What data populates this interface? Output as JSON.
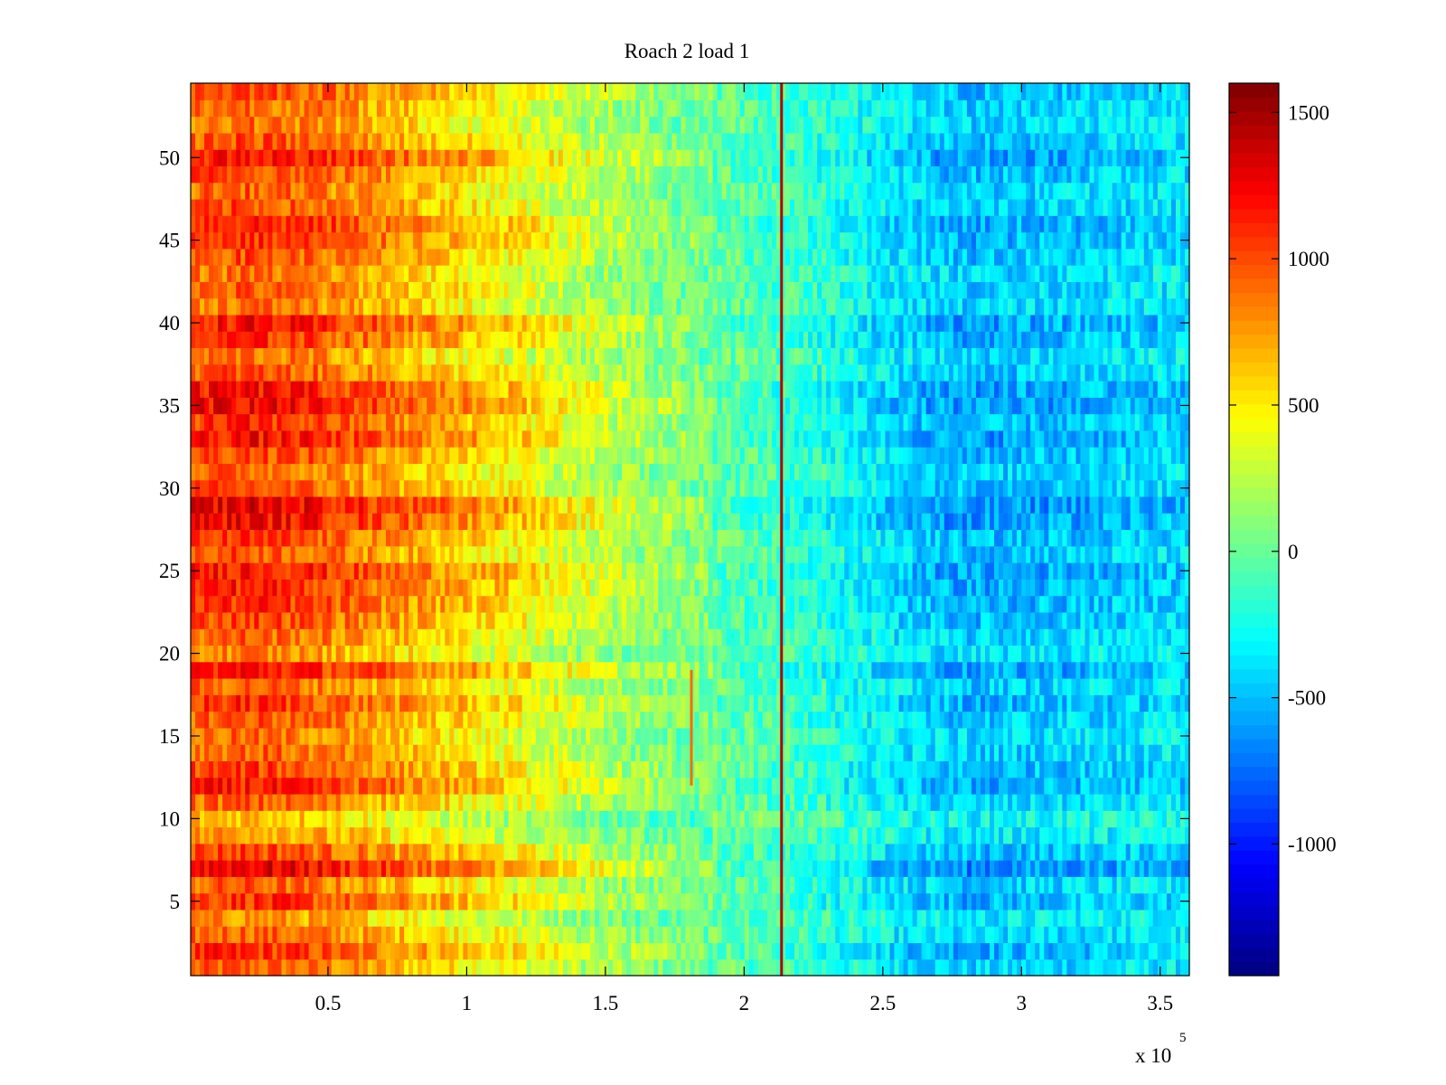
{
  "chart_data": {
    "type": "heatmap",
    "title": "Roach 2 load 1",
    "xlabel": "",
    "ylabel": "",
    "x_range": [
      500,
      360500
    ],
    "y_range": [
      0.5,
      54.5
    ],
    "x_multiplier_label": {
      "base": "x 10",
      "exponent": "5"
    },
    "x_ticks": [
      50000,
      100000,
      150000,
      200000,
      250000,
      300000,
      350000
    ],
    "x_tick_labels": [
      "0.5",
      "1",
      "1.5",
      "2",
      "2.5",
      "3",
      "3.5"
    ],
    "y_ticks": [
      5,
      10,
      15,
      20,
      25,
      30,
      35,
      40,
      45,
      50
    ],
    "y_tick_labels": [
      "5",
      "10",
      "15",
      "20",
      "25",
      "30",
      "35",
      "40",
      "45",
      "50"
    ],
    "rows": 54,
    "colormap": "jet",
    "clim": [
      -1450,
      1600
    ],
    "colorbar": {
      "placement": "right",
      "ticks": [
        1500,
        1000,
        500,
        0,
        -500,
        -1000
      ],
      "tick_labels": [
        "1500",
        "1000",
        "500",
        "0",
        "-500",
        "-1000"
      ]
    },
    "grid": false,
    "x_profile": {
      "x": [
        0,
        20000,
        40000,
        60000,
        80000,
        100000,
        120000,
        140000,
        160000,
        180000,
        200000,
        220000,
        240000,
        260000,
        280000,
        300000,
        320000,
        340000,
        360000
      ],
      "value": [
        900,
        950,
        880,
        750,
        620,
        500,
        380,
        240,
        120,
        30,
        -40,
        -120,
        -250,
        -380,
        -450,
        -430,
        -400,
        -370,
        -350
      ]
    },
    "row_offsets": [
      0,
      150,
      0,
      -150,
      150,
      0,
      350,
      100,
      -150,
      -250,
      0,
      200,
      100,
      0,
      -50,
      50,
      150,
      0,
      250,
      -100,
      0,
      100,
      150,
      200,
      250,
      50,
      100,
      300,
      350,
      50,
      0,
      100,
      250,
      150,
      300,
      250,
      50,
      -50,
      150,
      250,
      -50,
      0,
      -50,
      50,
      150,
      200,
      50,
      0,
      100,
      250,
      50,
      -50,
      0,
      100
    ],
    "vertical_streaks": [
      {
        "x": 213500,
        "value": 1450,
        "y_range": [
          0.5,
          54.5
        ]
      },
      {
        "x": 181000,
        "value": 900,
        "y_range": [
          12,
          19
        ]
      }
    ]
  }
}
